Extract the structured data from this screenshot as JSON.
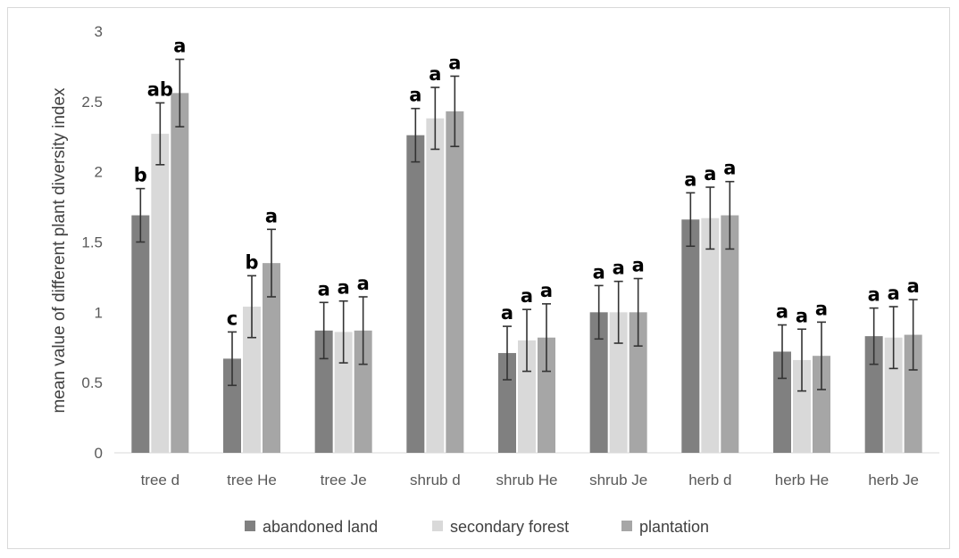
{
  "chart_data": {
    "type": "bar",
    "title": "",
    "xlabel": "",
    "ylabel": "mean value of different plant diversity index",
    "ylim": [
      0,
      3
    ],
    "yticks": [
      "0",
      "0.5",
      "1",
      "1.5",
      "2",
      "2.5",
      "3"
    ],
    "grid": false,
    "legend_position": "bottom",
    "categories": [
      "tree d",
      "tree He",
      "tree Je",
      "shrub d",
      "shrub He",
      "shrub Je",
      "herb d",
      "herb He",
      "herb Je"
    ],
    "series": [
      {
        "name": "abandoned land",
        "color": "#808080",
        "values": [
          1.69,
          0.67,
          0.87,
          2.26,
          0.71,
          1.0,
          1.66,
          0.72,
          0.83
        ],
        "errors": [
          0.19,
          0.19,
          0.2,
          0.19,
          0.19,
          0.19,
          0.19,
          0.19,
          0.2
        ],
        "letters": [
          "b",
          "c",
          "a",
          "a",
          "a",
          "a",
          "a",
          "a",
          "a"
        ]
      },
      {
        "name": "secondary forest",
        "color": "#d9d9d9",
        "values": [
          2.27,
          1.04,
          0.86,
          2.38,
          0.8,
          1.0,
          1.67,
          0.66,
          0.82
        ],
        "errors": [
          0.22,
          0.22,
          0.22,
          0.22,
          0.22,
          0.22,
          0.22,
          0.22,
          0.22
        ],
        "letters": [
          "ab",
          "b",
          "a",
          "a",
          "a",
          "a",
          "a",
          "a",
          "a"
        ]
      },
      {
        "name": "plantation",
        "color": "#a6a6a6",
        "values": [
          2.56,
          1.35,
          0.87,
          2.43,
          0.82,
          1.0,
          1.69,
          0.69,
          0.84
        ],
        "errors": [
          0.24,
          0.24,
          0.24,
          0.25,
          0.24,
          0.24,
          0.24,
          0.24,
          0.25
        ],
        "letters": [
          "a",
          "a",
          "a",
          "a",
          "a",
          "a",
          "a",
          "a",
          "a"
        ]
      }
    ]
  }
}
